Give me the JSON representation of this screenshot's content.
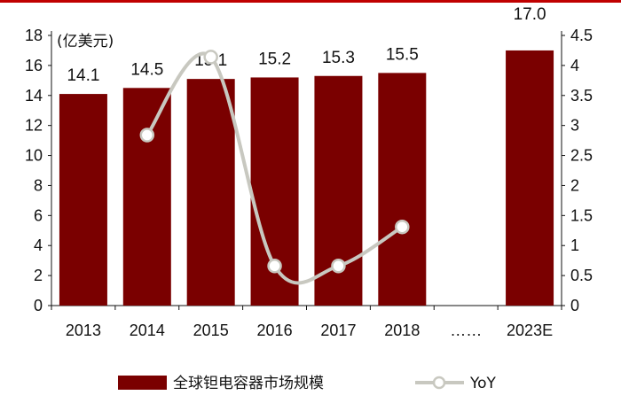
{
  "chart_data": {
    "type": "bar",
    "categories": [
      "2013",
      "2014",
      "2015",
      "2016",
      "2017",
      "2018",
      "……",
      "2023E"
    ],
    "unit_label": "(亿美元)",
    "series": [
      {
        "name": "全球钽电容器市场规模",
        "type": "bar",
        "axis": "left",
        "values": [
          14.1,
          14.5,
          15.1,
          15.2,
          15.3,
          15.5,
          null,
          17.0
        ],
        "labels": [
          "14.1",
          "14.5",
          "15.1",
          "15.2",
          "15.3",
          "15.5",
          "",
          "17.0"
        ],
        "color": "#7a0000"
      },
      {
        "name": "YoY",
        "type": "line",
        "axis": "right",
        "values": [
          null,
          2.84,
          4.14,
          0.66,
          0.66,
          1.31,
          null,
          null
        ],
        "color": "#c8c8c0"
      }
    ],
    "y_left": {
      "min": 0,
      "max": 18,
      "step": 2,
      "ticks": [
        "0",
        "2",
        "4",
        "6",
        "8",
        "10",
        "12",
        "14",
        "16",
        "18"
      ]
    },
    "y_right": {
      "min": 0,
      "max": 4.5,
      "step": 0.5,
      "ticks": [
        "0",
        "0.5",
        "1",
        "1.5",
        "2",
        "2.5",
        "3",
        "3.5",
        "4",
        "4.5"
      ]
    },
    "legend": {
      "position": "bottom"
    },
    "grid": false,
    "accent_color": "#c00000"
  }
}
